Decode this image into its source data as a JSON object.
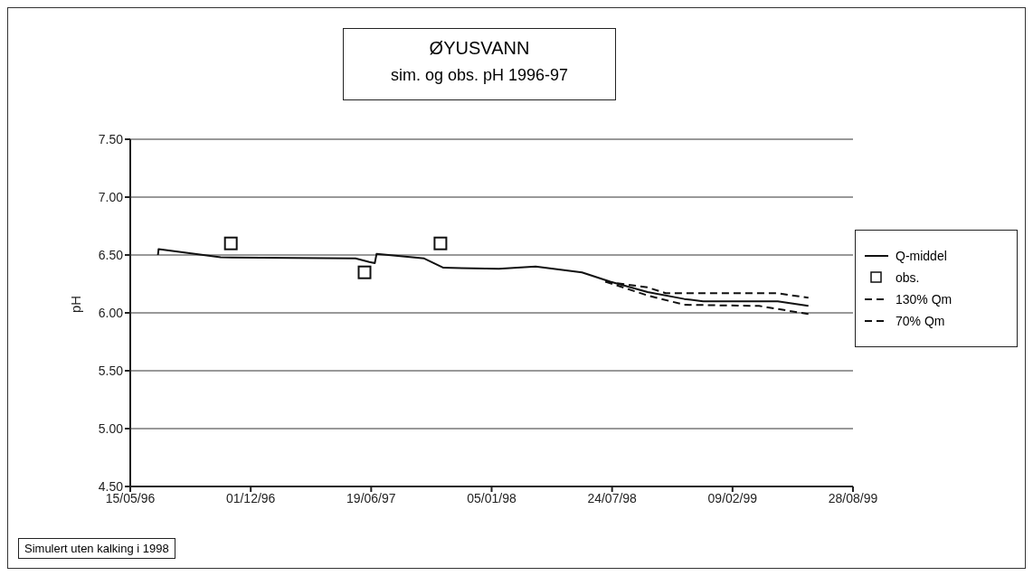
{
  "chart_data": {
    "type": "line",
    "title": "ØYUSVANN",
    "subtitle": "sim. og obs. pH 1996-97",
    "ylabel": "pH",
    "annotations": [
      "Simulert uten kalking i 1998"
    ],
    "xlim": [
      "1996-05-15",
      "1999-08-28"
    ],
    "xticks": [
      {
        "value": "1996-05-15",
        "label": "15/05/96"
      },
      {
        "value": "1996-12-01",
        "label": "01/12/96"
      },
      {
        "value": "1997-06-19",
        "label": "19/06/97"
      },
      {
        "value": "1998-01-05",
        "label": "05/01/98"
      },
      {
        "value": "1998-07-24",
        "label": "24/07/98"
      },
      {
        "value": "1999-02-09",
        "label": "09/02/99"
      },
      {
        "value": "1999-08-28",
        "label": "28/08/99"
      }
    ],
    "ylim": [
      4.5,
      7.5
    ],
    "yticks": [
      {
        "value": 4.5,
        "label": "4.50"
      },
      {
        "value": 5,
        "label": "5.00"
      },
      {
        "value": 5.5,
        "label": "5.50"
      },
      {
        "value": 6,
        "label": "6.00"
      },
      {
        "value": 6.5,
        "label": "6.50"
      },
      {
        "value": 7,
        "label": "7.00"
      },
      {
        "value": 7.5,
        "label": "7.50"
      }
    ],
    "grid": "y",
    "legend": "right",
    "series": [
      {
        "name": "Q-middel",
        "color": "#111111",
        "line_style": "solid",
        "marker": "none",
        "x": [
          "1996-06-30",
          "1996-07-01",
          "1996-10-12",
          "1997-05-24",
          "1997-06-16",
          "1997-06-25",
          "1997-06-28",
          "1997-09-15",
          "1997-10-17",
          "1998-01-17",
          "1998-03-19",
          "1998-06-04",
          "1998-07-21",
          "1998-09-21",
          "1998-11-21",
          "1998-12-22",
          "1999-04-25",
          "1999-06-15"
        ],
        "values": [
          6.5,
          6.55,
          6.48,
          6.47,
          6.44,
          6.43,
          6.51,
          6.47,
          6.39,
          6.38,
          6.4,
          6.35,
          6.27,
          6.18,
          6.12,
          6.1,
          6.1,
          6.06
        ]
      },
      {
        "name": "obs.",
        "type": "scatter",
        "color": "#111111",
        "marker": "square",
        "x": [
          "1996-10-29",
          "1997-06-08",
          "1997-10-12"
        ],
        "values": [
          6.6,
          6.35,
          6.6
        ]
      },
      {
        "name": "130% Qm",
        "color": "#111111",
        "line_style": "dashed",
        "marker": "none",
        "x": [
          "1998-07-13",
          "1998-09-21",
          "1998-10-21",
          "1999-04-25",
          "1999-06-15"
        ],
        "values": [
          6.27,
          6.22,
          6.17,
          6.17,
          6.13
        ]
      },
      {
        "name": "70% Qm",
        "color": "#111111",
        "line_style": "dashed",
        "marker": "none",
        "x": [
          "1998-07-13",
          "1998-09-21",
          "1998-11-21",
          "1999-03-25",
          "1999-06-15"
        ],
        "values": [
          6.27,
          6.15,
          6.07,
          6.06,
          5.99
        ]
      }
    ]
  }
}
